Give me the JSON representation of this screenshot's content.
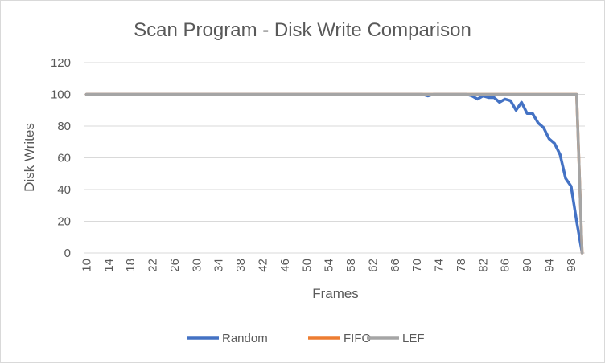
{
  "chart_data": {
    "type": "line",
    "title": "Scan Program - Disk Write Comparison",
    "xlabel": "Frames",
    "ylabel": "Disk Writes",
    "ylim": [
      0,
      120
    ],
    "yticks": [
      0,
      20,
      40,
      60,
      80,
      100,
      120
    ],
    "x_tick_labels": [
      "10",
      "14",
      "18",
      "22",
      "26",
      "30",
      "34",
      "38",
      "42",
      "46",
      "50",
      "54",
      "58",
      "62",
      "66",
      "70",
      "74",
      "78",
      "82",
      "86",
      "90",
      "94",
      "98"
    ],
    "grid": true,
    "legend_position": "bottom",
    "x": [
      10,
      11,
      12,
      13,
      14,
      15,
      16,
      17,
      18,
      19,
      20,
      21,
      22,
      23,
      24,
      25,
      26,
      27,
      28,
      29,
      30,
      31,
      32,
      33,
      34,
      35,
      36,
      37,
      38,
      39,
      40,
      41,
      42,
      43,
      44,
      45,
      46,
      47,
      48,
      49,
      50,
      51,
      52,
      53,
      54,
      55,
      56,
      57,
      58,
      59,
      60,
      61,
      62,
      63,
      64,
      65,
      66,
      67,
      68,
      69,
      70,
      71,
      72,
      73,
      74,
      75,
      76,
      77,
      78,
      79,
      80,
      81,
      82,
      83,
      84,
      85,
      86,
      87,
      88,
      89,
      90,
      91,
      92,
      93,
      94,
      95,
      96,
      97,
      98,
      99,
      100
    ],
    "series": [
      {
        "name": "Random",
        "color": "#4472C4",
        "values": [
          100,
          100,
          100,
          100,
          100,
          100,
          100,
          100,
          100,
          100,
          100,
          100,
          100,
          100,
          100,
          100,
          100,
          100,
          100,
          100,
          100,
          100,
          100,
          100,
          100,
          100,
          100,
          100,
          100,
          100,
          100,
          100,
          100,
          100,
          100,
          100,
          100,
          100,
          100,
          100,
          100,
          100,
          100,
          100,
          100,
          100,
          100,
          100,
          100,
          100,
          100,
          100,
          100,
          100,
          100,
          100,
          100,
          100,
          100,
          100,
          100,
          100,
          99,
          100,
          100,
          100,
          100,
          100,
          100,
          100,
          99,
          97,
          99,
          98,
          98,
          95,
          97,
          96,
          90,
          95,
          88,
          88,
          82,
          79,
          72,
          69,
          62,
          47,
          42,
          20,
          0
        ]
      },
      {
        "name": "FIFO",
        "color": "#ED7D31",
        "values": [
          100,
          100,
          100,
          100,
          100,
          100,
          100,
          100,
          100,
          100,
          100,
          100,
          100,
          100,
          100,
          100,
          100,
          100,
          100,
          100,
          100,
          100,
          100,
          100,
          100,
          100,
          100,
          100,
          100,
          100,
          100,
          100,
          100,
          100,
          100,
          100,
          100,
          100,
          100,
          100,
          100,
          100,
          100,
          100,
          100,
          100,
          100,
          100,
          100,
          100,
          100,
          100,
          100,
          100,
          100,
          100,
          100,
          100,
          100,
          100,
          100,
          100,
          100,
          100,
          100,
          100,
          100,
          100,
          100,
          100,
          100,
          100,
          100,
          100,
          100,
          100,
          100,
          100,
          100,
          100,
          100,
          100,
          100,
          100,
          100,
          100,
          100,
          100,
          100,
          100,
          0
        ]
      },
      {
        "name": "LEF",
        "color": "#A5A5A5",
        "values": [
          100,
          100,
          100,
          100,
          100,
          100,
          100,
          100,
          100,
          100,
          100,
          100,
          100,
          100,
          100,
          100,
          100,
          100,
          100,
          100,
          100,
          100,
          100,
          100,
          100,
          100,
          100,
          100,
          100,
          100,
          100,
          100,
          100,
          100,
          100,
          100,
          100,
          100,
          100,
          100,
          100,
          100,
          100,
          100,
          100,
          100,
          100,
          100,
          100,
          100,
          100,
          100,
          100,
          100,
          100,
          100,
          100,
          100,
          100,
          100,
          100,
          100,
          100,
          100,
          100,
          100,
          100,
          100,
          100,
          100,
          100,
          100,
          100,
          100,
          100,
          100,
          100,
          100,
          100,
          100,
          100,
          100,
          100,
          100,
          100,
          100,
          100,
          100,
          100,
          100,
          0
        ]
      }
    ]
  }
}
